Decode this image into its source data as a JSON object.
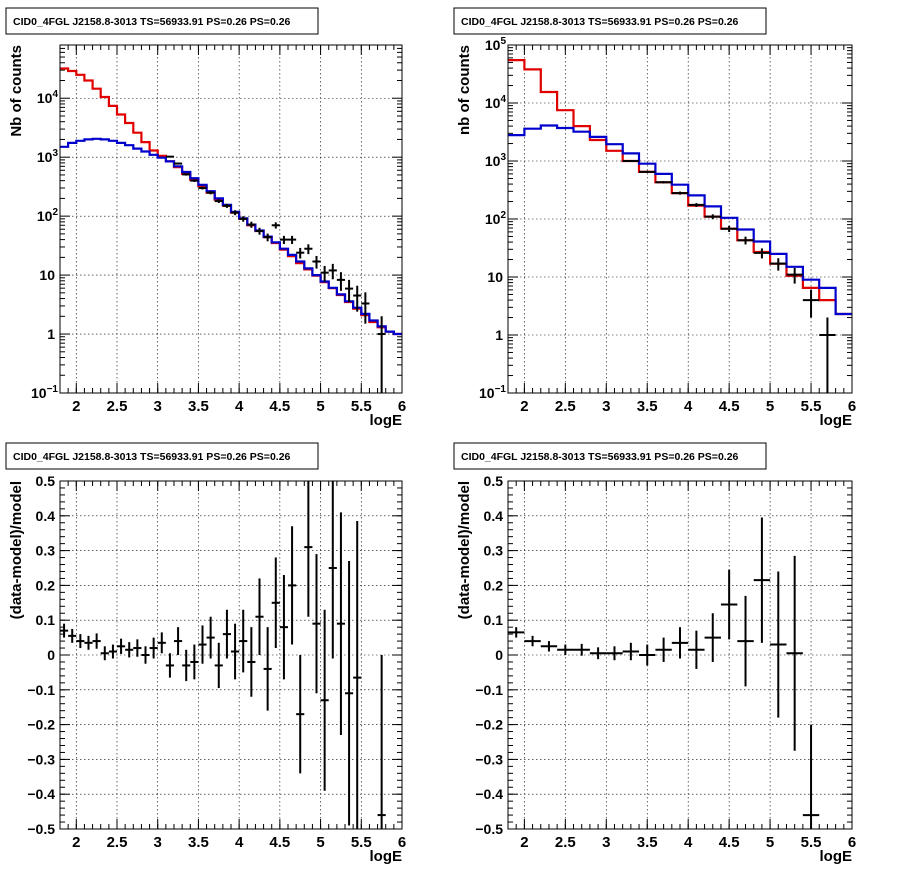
{
  "colors": {
    "data": "#000000",
    "total": "#e00000",
    "model": "#0000cc",
    "grid": "#000000"
  },
  "chart_data": [
    {
      "type": "line",
      "title": "CID0_4FGL J2158.8-3013 TS=56933.91 PS=0.26 PS=0.26",
      "xlabel": "logE",
      "ylabel": "Nb of counts",
      "xlim": [
        1.8,
        6.0
      ],
      "ylim": [
        0.1,
        80000
      ],
      "yscale": "log",
      "grid": true,
      "x_ticks": [
        "2",
        "2.5",
        "3",
        "3.5",
        "4",
        "4.5",
        "5",
        "5.5",
        "6"
      ],
      "y_ticks": [
        {
          "v": 0.1,
          "b": "10",
          "e": "−1"
        },
        {
          "v": 1,
          "b": "1",
          "e": ""
        },
        {
          "v": 10,
          "b": "10",
          "e": ""
        },
        {
          "v": 100,
          "b": "10",
          "e": "2"
        },
        {
          "v": 1000,
          "b": "10",
          "e": "3"
        },
        {
          "v": 10000,
          "b": "10",
          "e": "4"
        }
      ],
      "bin_width": 0.1,
      "series": [
        {
          "kind": "step",
          "color": "total",
          "x": [
            1.8,
            1.9,
            2.0,
            2.1,
            2.2,
            2.3,
            2.4,
            2.5,
            2.6,
            2.7,
            2.8,
            2.9,
            3.0,
            3.1,
            3.2,
            3.3,
            3.4,
            3.5,
            3.6,
            3.7,
            3.8,
            3.9,
            4.0,
            4.1,
            4.2,
            4.3,
            4.4,
            4.5,
            4.6,
            4.7,
            4.8,
            4.9,
            5.0,
            5.1,
            5.2,
            5.3,
            5.4,
            5.5,
            5.6,
            5.7,
            5.8,
            5.9
          ],
          "values": [
            32000,
            29000,
            25000,
            20000,
            14500,
            10500,
            7400,
            5300,
            3800,
            2600,
            1800,
            1300,
            1050,
            850,
            680,
            520,
            410,
            320,
            250,
            190,
            150,
            115,
            90,
            70,
            56,
            44,
            35,
            27,
            21,
            16,
            12.5,
            9.8,
            7.6,
            6.0,
            4.6,
            3.5,
            2.7,
            2.1,
            1.6,
            1.3,
            1.1,
            1.0
          ]
        },
        {
          "kind": "step",
          "color": "model",
          "x": [
            1.8,
            1.9,
            2.0,
            2.1,
            2.2,
            2.3,
            2.4,
            2.5,
            2.6,
            2.7,
            2.8,
            2.9,
            3.0,
            3.1,
            3.2,
            3.3,
            3.4,
            3.5,
            3.6,
            3.7,
            3.8,
            3.9,
            4.0,
            4.1,
            4.2,
            4.3,
            4.4,
            4.5,
            4.6,
            4.7,
            4.8,
            4.9,
            5.0,
            5.1,
            5.2,
            5.3,
            5.4,
            5.5,
            5.6,
            5.7,
            5.8,
            5.9
          ],
          "values": [
            1500,
            1750,
            1900,
            2000,
            2050,
            2000,
            1900,
            1750,
            1600,
            1400,
            1250,
            1100,
            980,
            850,
            700,
            560,
            440,
            340,
            265,
            200,
            155,
            118,
            92,
            72,
            57,
            45,
            36,
            28,
            22,
            17,
            13,
            10,
            7.8,
            6.1,
            4.7,
            3.6,
            2.8,
            2.2,
            1.7,
            1.35,
            1.1,
            1.0
          ]
        },
        {
          "kind": "points",
          "color": "data",
          "x": [
            3.15,
            3.25,
            3.35,
            3.45,
            3.55,
            3.65,
            3.75,
            3.85,
            3.95,
            4.05,
            4.15,
            4.25,
            4.35,
            4.45,
            4.55,
            4.65,
            4.75,
            4.85,
            4.95,
            5.05,
            5.15,
            5.25,
            5.35,
            5.45,
            5.55,
            5.75
          ],
          "values": [
            1020,
            780,
            510,
            400,
            300,
            250,
            180,
            150,
            115,
            90,
            72,
            56,
            44,
            70,
            40,
            40,
            24,
            28,
            17,
            11,
            12,
            8.3,
            5.9,
            4.5,
            3.3,
            1
          ],
          "err": [
            32,
            28,
            23,
            20,
            17,
            16,
            13,
            12,
            11,
            9.5,
            8.5,
            7.5,
            6.6,
            8.4,
            6.3,
            6.3,
            4.9,
            5.3,
            4.1,
            3.3,
            3.5,
            2.9,
            2.4,
            2.1,
            1.8,
            1
          ]
        }
      ]
    },
    {
      "type": "line",
      "title": "CID0_4FGL J2158.8-3013 TS=56933.91 PS=0.26 PS=0.26",
      "xlabel": "logE",
      "ylabel": "nb of counts",
      "xlim": [
        1.8,
        6.0
      ],
      "ylim": [
        0.1,
        100000
      ],
      "yscale": "log",
      "grid": true,
      "x_ticks": [
        "2",
        "2.5",
        "3",
        "3.5",
        "4",
        "4.5",
        "5",
        "5.5",
        "6"
      ],
      "y_ticks": [
        {
          "v": 0.1,
          "b": "10",
          "e": "−1"
        },
        {
          "v": 1,
          "b": "1",
          "e": ""
        },
        {
          "v": 10,
          "b": "10",
          "e": ""
        },
        {
          "v": 100,
          "b": "10",
          "e": "2"
        },
        {
          "v": 1000,
          "b": "10",
          "e": "3"
        },
        {
          "v": 10000,
          "b": "10",
          "e": "4"
        },
        {
          "v": 100000,
          "b": "10",
          "e": "5"
        }
      ],
      "bin_width": 0.2,
      "series": [
        {
          "kind": "step",
          "color": "total",
          "x": [
            1.8,
            2.0,
            2.2,
            2.4,
            2.6,
            2.8,
            3.0,
            3.2,
            3.4,
            3.6,
            3.8,
            4.0,
            4.2,
            4.4,
            4.6,
            4.8,
            5.0,
            5.2,
            5.4,
            5.6,
            5.8
          ],
          "values": [
            55000,
            38000,
            15500,
            7500,
            4000,
            2300,
            1500,
            1000,
            650,
            430,
            280,
            170,
            110,
            68,
            43,
            27,
            17,
            10.5,
            6.5,
            4.0,
            2.3
          ]
        },
        {
          "kind": "step",
          "color": "model",
          "x": [
            1.8,
            2.0,
            2.2,
            2.4,
            2.6,
            2.8,
            3.0,
            3.2,
            3.4,
            3.6,
            3.8,
            4.0,
            4.2,
            4.4,
            4.6,
            4.8,
            5.0,
            5.2,
            5.4,
            5.6,
            5.8
          ],
          "values": [
            2800,
            3600,
            4100,
            3700,
            3200,
            2600,
            1950,
            1350,
            900,
            600,
            390,
            255,
            165,
            105,
            66,
            41,
            25,
            15,
            9,
            6.5,
            2.3
          ]
        },
        {
          "kind": "points",
          "color": "data",
          "x": [
            3.3,
            3.5,
            3.7,
            3.9,
            4.1,
            4.3,
            4.5,
            4.7,
            4.9,
            5.1,
            5.3,
            5.5,
            5.7
          ],
          "values": [
            1000,
            650,
            430,
            280,
            175,
            110,
            68,
            43,
            26,
            17,
            11,
            4,
            1
          ],
          "err": [
            32,
            25,
            21,
            17,
            13,
            10.5,
            8.2,
            6.6,
            5.1,
            4.1,
            3.3,
            2,
            1
          ]
        }
      ]
    },
    {
      "type": "scatter",
      "title": "CID0_4FGL J2158.8-3013 TS=56933.91 PS=0.26 PS=0.26",
      "xlabel": "logE",
      "ylabel": "(data-model)/model",
      "xlim": [
        1.8,
        6.0
      ],
      "ylim": [
        -0.5,
        0.5
      ],
      "yscale": "linear",
      "grid": true,
      "x_ticks": [
        "2",
        "2.5",
        "3",
        "3.5",
        "4",
        "4.5",
        "5",
        "5.5",
        "6"
      ],
      "y_ticks": [
        {
          "v": 0.5,
          "b": "0.5",
          "e": ""
        },
        {
          "v": 0.4,
          "b": "0.4",
          "e": ""
        },
        {
          "v": 0.3,
          "b": "0.3",
          "e": ""
        },
        {
          "v": 0.2,
          "b": "0.2",
          "e": ""
        },
        {
          "v": 0.1,
          "b": "0.1",
          "e": ""
        },
        {
          "v": 0,
          "b": "0",
          "e": ""
        },
        {
          "v": -0.1,
          "b": "−0.1",
          "e": ""
        },
        {
          "v": -0.2,
          "b": "−0.2",
          "e": ""
        },
        {
          "v": -0.3,
          "b": "−0.3",
          "e": ""
        },
        {
          "v": -0.4,
          "b": "−0.4",
          "e": ""
        },
        {
          "v": -0.5,
          "b": "−0.5",
          "e": ""
        }
      ],
      "bin_width": 0.1,
      "series": [
        {
          "kind": "points",
          "color": "data",
          "x": [
            1.85,
            1.95,
            2.05,
            2.15,
            2.25,
            2.35,
            2.45,
            2.55,
            2.65,
            2.75,
            2.85,
            2.95,
            3.05,
            3.15,
            3.25,
            3.35,
            3.45,
            3.55,
            3.65,
            3.75,
            3.85,
            3.95,
            4.05,
            4.15,
            4.25,
            4.35,
            4.45,
            4.55,
            4.65,
            4.75,
            4.85,
            4.95,
            5.05,
            5.15,
            5.25,
            5.35,
            5.45,
            5.75
          ],
          "values": [
            0.07,
            0.055,
            0.04,
            0.035,
            0.04,
            0.005,
            0.01,
            0.025,
            0.015,
            0.02,
            0.0,
            0.02,
            0.035,
            -0.03,
            0.04,
            -0.03,
            -0.02,
            0.03,
            0.05,
            -0.03,
            0.06,
            0.01,
            0.04,
            -0.02,
            0.11,
            -0.04,
            0.15,
            0.08,
            0.2,
            -0.17,
            0.31,
            0.09,
            -0.13,
            0.25,
            0.09,
            -0.11,
            -0.065,
            -0.46
          ],
          "err": [
            0.02,
            0.02,
            0.02,
            0.02,
            0.022,
            0.02,
            0.02,
            0.022,
            0.022,
            0.025,
            0.025,
            0.03,
            0.03,
            0.035,
            0.04,
            0.045,
            0.05,
            0.055,
            0.06,
            0.065,
            0.07,
            0.08,
            0.09,
            0.1,
            0.11,
            0.12,
            0.13,
            0.15,
            0.17,
            0.17,
            0.2,
            0.2,
            0.26,
            0.26,
            0.32,
            0.38,
            0.45,
            0.46
          ]
        }
      ]
    },
    {
      "type": "scatter",
      "title": "CID0_4FGL J2158.8-3013 TS=56933.91 PS=0.26 PS=0.26",
      "xlabel": "logE",
      "ylabel": "(data-model)/model",
      "xlim": [
        1.8,
        6.0
      ],
      "ylim": [
        -0.5,
        0.5
      ],
      "yscale": "linear",
      "grid": true,
      "x_ticks": [
        "2",
        "2.5",
        "3",
        "3.5",
        "4",
        "4.5",
        "5",
        "5.5",
        "6"
      ],
      "y_ticks": [
        {
          "v": 0.5,
          "b": "0.5",
          "e": ""
        },
        {
          "v": 0.4,
          "b": "0.4",
          "e": ""
        },
        {
          "v": 0.3,
          "b": "0.3",
          "e": ""
        },
        {
          "v": 0.2,
          "b": "0.2",
          "e": ""
        },
        {
          "v": 0.1,
          "b": "0.1",
          "e": ""
        },
        {
          "v": 0,
          "b": "0",
          "e": ""
        },
        {
          "v": -0.1,
          "b": "−0.1",
          "e": ""
        },
        {
          "v": -0.2,
          "b": "−0.2",
          "e": ""
        },
        {
          "v": -0.3,
          "b": "−0.3",
          "e": ""
        },
        {
          "v": -0.4,
          "b": "−0.4",
          "e": ""
        },
        {
          "v": -0.5,
          "b": "−0.5",
          "e": ""
        }
      ],
      "bin_width": 0.2,
      "series": [
        {
          "kind": "points",
          "color": "data",
          "x": [
            1.9,
            2.1,
            2.3,
            2.5,
            2.7,
            2.9,
            3.1,
            3.3,
            3.5,
            3.7,
            3.9,
            4.1,
            4.3,
            4.5,
            4.7,
            4.9,
            5.1,
            5.3,
            5.5
          ],
          "values": [
            0.065,
            0.04,
            0.025,
            0.015,
            0.015,
            0.005,
            0.005,
            0.01,
            0.0,
            0.015,
            0.035,
            0.015,
            0.05,
            0.145,
            0.04,
            0.215,
            0.03,
            0.005,
            -0.46
          ],
          "err": [
            0.015,
            0.015,
            0.015,
            0.015,
            0.017,
            0.017,
            0.02,
            0.025,
            0.03,
            0.035,
            0.045,
            0.055,
            0.07,
            0.1,
            0.13,
            0.18,
            0.21,
            0.28,
            0.26
          ]
        }
      ]
    }
  ]
}
